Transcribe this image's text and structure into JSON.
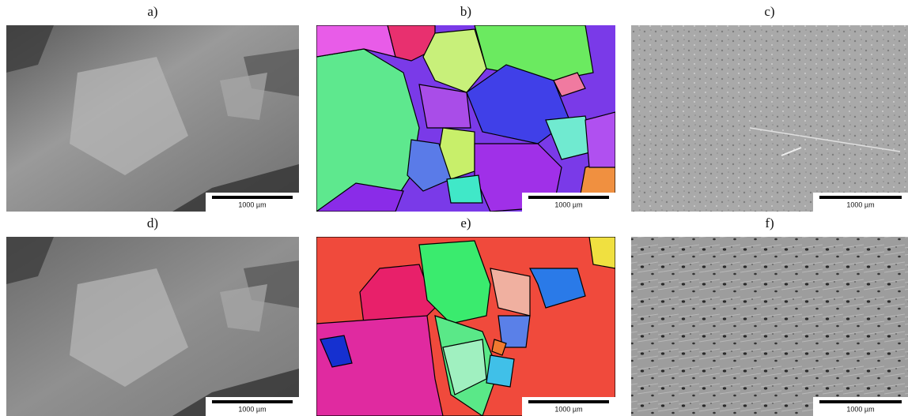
{
  "panels": [
    {
      "label": "a)",
      "scale_bar": "1000 µm"
    },
    {
      "label": "b)",
      "scale_bar": "1000 µm"
    },
    {
      "label": "c)",
      "scale_bar": "1000 µm"
    },
    {
      "label": "d)",
      "scale_bar": "1000 µm"
    },
    {
      "label": "e)",
      "scale_bar": "1000 µm"
    },
    {
      "label": "f)",
      "scale_bar": "1000 µm"
    }
  ]
}
